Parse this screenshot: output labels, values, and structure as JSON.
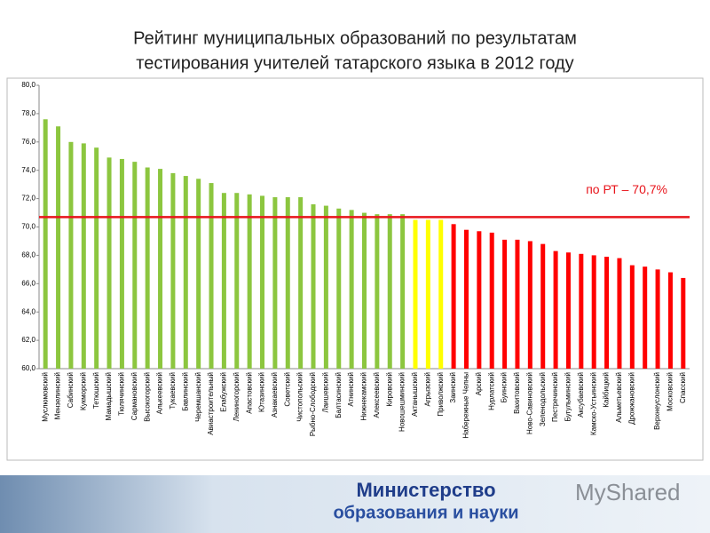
{
  "chart_data": {
    "type": "bar",
    "title": [
      "Рейтинг муниципальных образований по результатам",
      "тестирования учителей татарского языка в 2012 году"
    ],
    "categories": [
      "Муслюмовский",
      "Мензелинский",
      "Сабинский",
      "Кукморский",
      "Тетюшский",
      "Мамадышский",
      "Тюлячинский",
      "Сармановский",
      "Высокогорский",
      "Алькеевский",
      "Тукаевский",
      "Бавлинский",
      "Черемшанский",
      "Авиастроительный",
      "Елабужский",
      "Лениногорский",
      "Апастовский",
      "Ютазинский",
      "Азнакаевский",
      "Советский",
      "Чистопольский",
      "Рыбно-Слободский",
      "Лаишевский",
      "Балтасинский",
      "Атнинский",
      "Нижнекамский",
      "Алексеевский",
      "Кировский",
      "Новошешминский",
      "Актанышский",
      "Агрызский",
      "Приволжский",
      "Заинский",
      "Набережные Челны",
      "Арский",
      "Нурлатский",
      "Буинский",
      "Вахитовский",
      "Ново-Савиновский",
      "Зеленодольский",
      "Пестречинский",
      "Бугульминский",
      "Аксубаевский",
      "Камско-Устьинский",
      "Кайбицкий",
      "Альметьевский",
      "Дрожжановский",
      null,
      "Верхнеуслонский",
      "Московский",
      "Спасский"
    ],
    "values": [
      77.6,
      77.1,
      76.0,
      75.9,
      75.6,
      74.9,
      74.8,
      74.6,
      74.2,
      74.1,
      73.8,
      73.6,
      73.4,
      73.1,
      72.4,
      72.4,
      72.3,
      72.2,
      72.1,
      72.1,
      72.1,
      71.6,
      71.5,
      71.3,
      71.2,
      71.0,
      70.9,
      70.9,
      70.9,
      70.5,
      70.5,
      70.5,
      70.2,
      69.8,
      69.7,
      69.6,
      69.1,
      69.1,
      69.0,
      68.8,
      68.3,
      68.2,
      68.1,
      68.0,
      67.9,
      67.8,
      67.3,
      67.2,
      67.0,
      66.8,
      66.4
    ],
    "colors": [
      "#8cc63f",
      "#8cc63f",
      "#8cc63f",
      "#8cc63f",
      "#8cc63f",
      "#8cc63f",
      "#8cc63f",
      "#8cc63f",
      "#8cc63f",
      "#8cc63f",
      "#8cc63f",
      "#8cc63f",
      "#8cc63f",
      "#8cc63f",
      "#8cc63f",
      "#8cc63f",
      "#8cc63f",
      "#8cc63f",
      "#8cc63f",
      "#8cc63f",
      "#8cc63f",
      "#8cc63f",
      "#8cc63f",
      "#8cc63f",
      "#8cc63f",
      "#8cc63f",
      "#8cc63f",
      "#8cc63f",
      "#8cc63f",
      "#ffff00",
      "#ffff00",
      "#ffff00",
      "#ff0000",
      "#ff0000",
      "#ff0000",
      "#ff0000",
      "#ff0000",
      "#ff0000",
      "#ff0000",
      "#ff0000",
      "#ff0000",
      "#ff0000",
      "#ff0000",
      "#ff0000",
      "#ff0000",
      "#ff0000",
      "#ff0000",
      "#ff0000",
      "#ff0000",
      "#ff0000",
      "#ff0000"
    ],
    "ylim": [
      60,
      80
    ],
    "yticks": [
      {
        "value": 60,
        "label": "60,0"
      },
      {
        "value": 62,
        "label": "62,0"
      },
      {
        "value": 64,
        "label": "64,0"
      },
      {
        "value": 66,
        "label": "66,0"
      },
      {
        "value": 68,
        "label": "68,0"
      },
      {
        "value": 70,
        "label": "70,0"
      },
      {
        "value": 72,
        "label": "72,0"
      },
      {
        "value": 74,
        "label": "74,0"
      },
      {
        "value": 76,
        "label": "76,0"
      },
      {
        "value": 78,
        "label": "78,0"
      },
      {
        "value": 80,
        "label": "80,0"
      }
    ],
    "reference": {
      "value": 70.7,
      "label": "по РТ – 70,7%",
      "color": "#e8141b"
    }
  },
  "footer": {
    "line1": "Министерство",
    "line2": "образования и науки",
    "logo": "MyShared"
  }
}
